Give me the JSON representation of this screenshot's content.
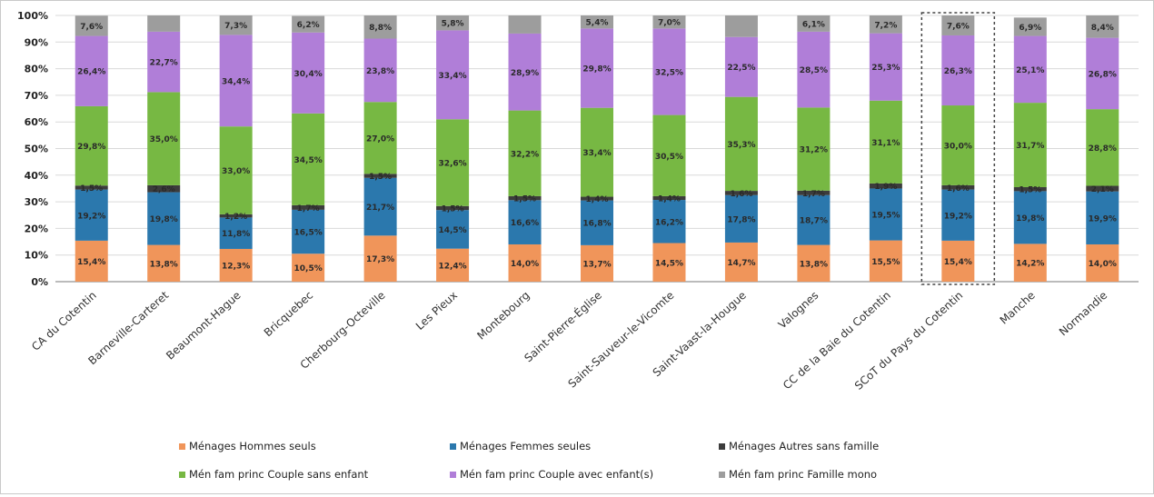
{
  "chart_data": {
    "type": "bar",
    "stacked": true,
    "percent": true,
    "ylim": [
      0,
      100
    ],
    "y_ticks": [
      "0%",
      "10%",
      "20%",
      "30%",
      "40%",
      "50%",
      "60%",
      "70%",
      "80%",
      "90%",
      "100%"
    ],
    "grid": true,
    "legend_position": "bottom",
    "highlighted_category": "SCoT du Pays du Cotentin",
    "categories": [
      "CA du Cotentin",
      "Barneville-Carteret",
      "Beaumont-Hague",
      "Bricquebec",
      "Cherbourg-Octeville",
      "Les Pieux",
      "Montebourg",
      "Saint-Pierre-Église",
      "Saint-Sauveur-le-Vicomte",
      "Saint-Vaast-la-Hougue",
      "Valognes",
      "CC de la Baie du Cotentin",
      "SCoT du Pays du Cotentin",
      "Manche",
      "Normandie"
    ],
    "series": [
      {
        "name": "Ménages Hommes seuls",
        "color": "#f0955a",
        "values": [
          15.4,
          13.8,
          12.3,
          10.5,
          17.3,
          12.4,
          14.0,
          13.7,
          14.5,
          14.7,
          13.8,
          15.5,
          15.4,
          14.2,
          14.0
        ],
        "labels": [
          "15,4%",
          "13,8%",
          "12,3%",
          "10,5%",
          "17,3%",
          "12,4%",
          "14,0%",
          "13,7%",
          "14,5%",
          "14,7%",
          "13,8%",
          "15,5%",
          "15,4%",
          "14,2%",
          "14,0%"
        ]
      },
      {
        "name": "Ménages Femmes seules",
        "color": "#2b78ad",
        "values": [
          19.2,
          19.8,
          11.8,
          16.5,
          21.7,
          14.5,
          16.6,
          16.8,
          16.2,
          17.8,
          18.7,
          19.5,
          19.2,
          19.8,
          19.9
        ],
        "labels": [
          "19,2%",
          "19,8%",
          "11,8%",
          "16,5%",
          "21,7%",
          "14,5%",
          "16,6%",
          "16,8%",
          "16,2%",
          "17,8%",
          "18,7%",
          "19,5%",
          "19,2%",
          "19,8%",
          "19,9%"
        ]
      },
      {
        "name": "Ménages Autres sans famille",
        "color": "#3c3c3c",
        "values": [
          1.5,
          2.6,
          1.2,
          1.7,
          1.5,
          1.5,
          1.5,
          1.4,
          1.4,
          1.6,
          1.7,
          1.9,
          1.6,
          1.5,
          2.1
        ],
        "labels": [
          "1,5%",
          "2,6%",
          "1,2%",
          "1,7%",
          "1,5%",
          "1,5%",
          "1,5%",
          "1,4%",
          "1,4%",
          "1,6%",
          "1,7%",
          "1,9%",
          "1,6%",
          "1,5%",
          "2,1%"
        ]
      },
      {
        "name": "Mén fam princ Couple sans enfant",
        "color": "#77b843",
        "values": [
          29.8,
          35.0,
          33.0,
          34.5,
          27.0,
          32.6,
          32.2,
          33.4,
          30.5,
          35.3,
          31.2,
          31.1,
          30.0,
          31.7,
          28.8
        ],
        "labels": [
          "29,8%",
          "35,0%",
          "33,0%",
          "34,5%",
          "27,0%",
          "32,6%",
          "32,2%",
          "33,4%",
          "30,5%",
          "35,3%",
          "31,2%",
          "31,1%",
          "30,0%",
          "31,7%",
          "28,8%"
        ]
      },
      {
        "name": "Mén fam princ Couple avec enfant(s)",
        "color": "#b07ed8",
        "values": [
          26.4,
          22.7,
          34.4,
          30.4,
          23.8,
          33.4,
          28.9,
          29.8,
          32.5,
          22.5,
          28.5,
          25.3,
          26.3,
          25.1,
          26.8
        ],
        "labels": [
          "26,4%",
          "22,7%",
          "34,4%",
          "30,4%",
          "23,8%",
          "33,4%",
          "28,9%",
          "29,8%",
          "32,5%",
          "22,5%",
          "28,5%",
          "25,3%",
          "26,3%",
          "25,1%",
          "26,8%"
        ]
      },
      {
        "name": "Mén fam princ Famille mono",
        "color": "#9d9d9d",
        "values": [
          7.6,
          6.1,
          7.3,
          6.2,
          8.8,
          5.8,
          6.8,
          5.4,
          7.0,
          8.1,
          6.1,
          7.2,
          7.6,
          6.9,
          8.4
        ],
        "labels": [
          "7,6%",
          "",
          "7,3%",
          "6,2%",
          "8,8%",
          "5,8%",
          "",
          "5,4%",
          "7,0%",
          "",
          "6,1%",
          "7,2%",
          "7,6%",
          "6,9%",
          "8,4%"
        ]
      }
    ]
  }
}
